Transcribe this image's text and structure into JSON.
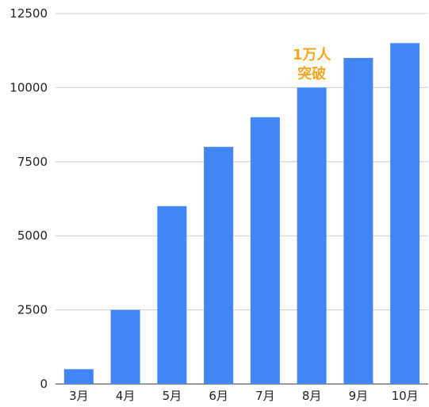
{
  "chart_data": {
    "type": "bar",
    "categories": [
      "3月",
      "4月",
      "5月",
      "6月",
      "7月",
      "8月",
      "9月",
      "10月"
    ],
    "values": [
      500,
      2500,
      6000,
      8000,
      9000,
      10000,
      11000,
      11500
    ],
    "y_ticks": [
      "0",
      "2500",
      "5000",
      "7500",
      "10000",
      "12500"
    ],
    "ylim": [
      0,
      12500
    ],
    "grid": true,
    "bar_color": "#4285f4",
    "annotation": {
      "lines": [
        "1万人",
        "突破"
      ],
      "category": "8月",
      "color": "#f5a623"
    }
  }
}
